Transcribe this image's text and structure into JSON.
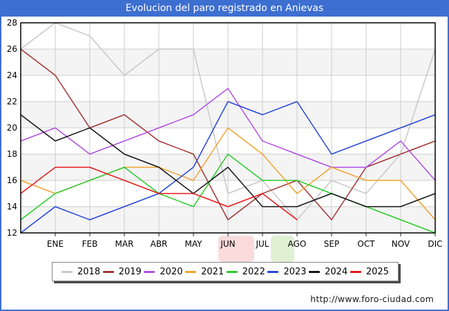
{
  "window": {
    "title": "Evolucion del paro registrado en Anievas"
  },
  "footer": {
    "url": "http://www.foro-ciudad.com"
  },
  "colors": {
    "titlebar_blue": "#3d6fd1",
    "frame_border_blue": "#3d6fd1",
    "gridline": "#cccccc",
    "stripe": "#f4f4f4",
    "plot_border": "#000000"
  },
  "chart_data": {
    "type": "line",
    "title": "Evolucion del paro registrado en Anievas",
    "xlabel": "",
    "ylabel": "",
    "categories": [
      "ENE",
      "FEB",
      "MAR",
      "ABR",
      "MAY",
      "JUN",
      "JUL",
      "AGO",
      "SEP",
      "OCT",
      "NOV",
      "DIC"
    ],
    "ylim": [
      12,
      28
    ],
    "y_ticks": [
      28,
      26,
      24,
      22,
      20,
      18,
      16,
      14,
      12
    ],
    "grid": true,
    "legend_position": "bottom",
    "points_per_series": "13 = value at left plot edge followed by the 12 labeled months; 2025 ends at AGO",
    "stripe_bands_top_values": [
      26,
      22,
      18,
      14
    ],
    "series": [
      {
        "name": "2018",
        "color": "#c8c8c8",
        "values": [
          26,
          28,
          27,
          24,
          26,
          26,
          15,
          16,
          13,
          16,
          15,
          18,
          26
        ]
      },
      {
        "name": "2019",
        "color": "#a23535",
        "values": [
          26,
          24,
          20,
          21,
          19,
          18,
          13,
          15,
          16,
          13,
          17,
          18,
          19
        ]
      },
      {
        "name": "2020",
        "color": "#b14fe3",
        "values": [
          19,
          20,
          18,
          19,
          20,
          21,
          23,
          19,
          18,
          17,
          17,
          19,
          16
        ]
      },
      {
        "name": "2021",
        "color": "#f0a330",
        "values": [
          16,
          15,
          16,
          17,
          17,
          16,
          20,
          18,
          15,
          17,
          16,
          16,
          13
        ]
      },
      {
        "name": "2022",
        "color": "#29cc29",
        "values": [
          13,
          15,
          16,
          17,
          15,
          14,
          18,
          16,
          16,
          15,
          14,
          13,
          12
        ]
      },
      {
        "name": "2023",
        "color": "#2746d6",
        "values": [
          12,
          14,
          13,
          14,
          15,
          17,
          22,
          21,
          22,
          18,
          19,
          20,
          21
        ]
      },
      {
        "name": "2024",
        "color": "#141414",
        "values": [
          21,
          19,
          20,
          18,
          17,
          15,
          17,
          14,
          14,
          15,
          14,
          14,
          15
        ]
      },
      {
        "name": "2025",
        "color": "#e51919",
        "values": [
          15,
          17,
          17,
          16,
          15,
          15,
          14,
          15,
          13
        ]
      }
    ]
  }
}
